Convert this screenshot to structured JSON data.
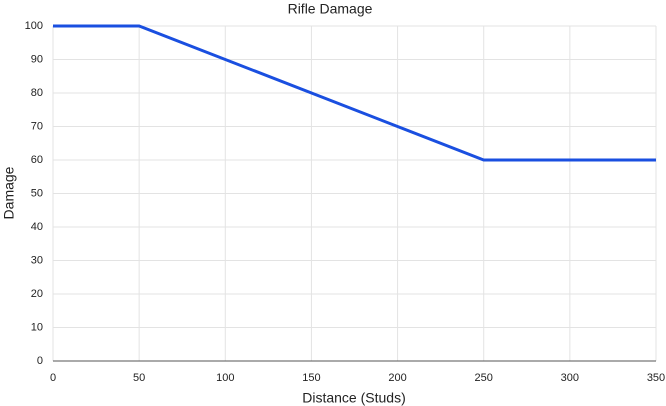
{
  "chart_data": {
    "type": "line",
    "title": "Rifle Damage",
    "x_label": "Distance (Studs)",
    "y_label": "Damage",
    "x": [
      0,
      50,
      250,
      350
    ],
    "series": [
      {
        "name": "Damage",
        "color": "#1a4fe0",
        "values": [
          100,
          100,
          60,
          60
        ]
      }
    ],
    "xlim": [
      0,
      350
    ],
    "xticks": [
      0,
      50,
      100,
      150,
      200,
      250,
      300,
      350
    ],
    "ylim": [
      0,
      100
    ],
    "yticks": [
      0,
      10,
      20,
      30,
      40,
      50,
      60,
      70,
      80,
      90,
      100
    ],
    "grid": true
  }
}
